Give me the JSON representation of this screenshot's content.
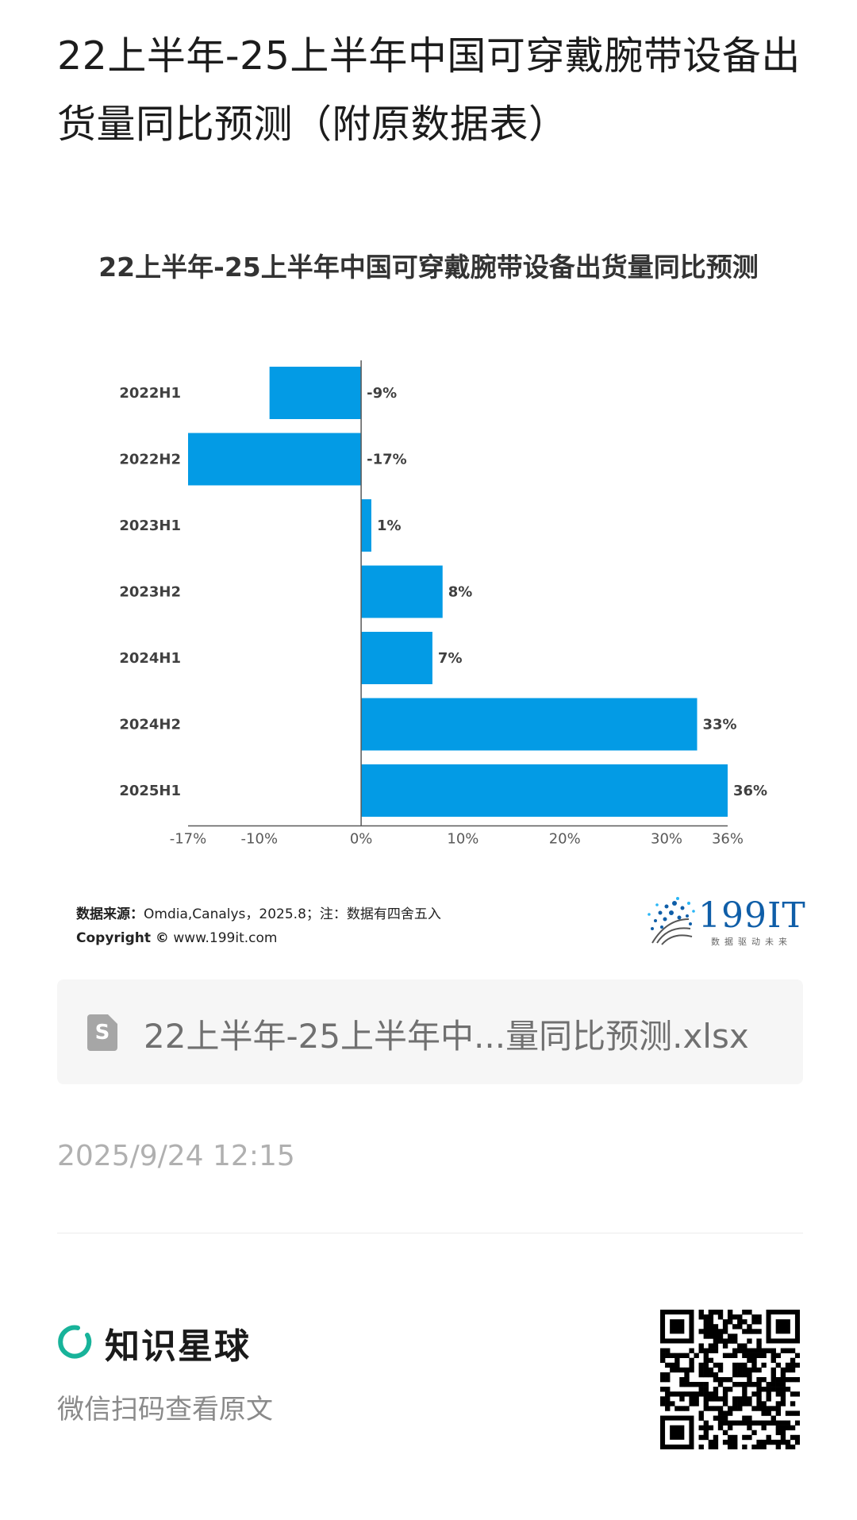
{
  "page": {
    "title": "22上半年-25上半年中国可穿戴腕带设备出货量同比预测（附原数据表）"
  },
  "chart_data": {
    "type": "bar",
    "orientation": "horizontal",
    "title": "22上半年-25上半年中国可穿戴腕带设备出货量同比预测",
    "categories": [
      "2022H1",
      "2022H2",
      "2023H1",
      "2023H2",
      "2024H1",
      "2024H2",
      "2025H1"
    ],
    "values": [
      -9,
      -17,
      1,
      8,
      7,
      33,
      36
    ],
    "value_labels": [
      "-9%",
      "-17%",
      "1%",
      "8%",
      "7%",
      "33%",
      "36%"
    ],
    "x_ticks": [
      -17,
      -10,
      0,
      10,
      20,
      30,
      36
    ],
    "x_tick_labels": [
      "-17%",
      "-10%",
      "0%",
      "10%",
      "20%",
      "30%",
      "36%"
    ],
    "xlim": [
      -17,
      36
    ],
    "xlabel": "",
    "ylabel": "",
    "grid": false,
    "colors": {
      "bar": "#039be5",
      "axis": "#595959"
    }
  },
  "source": {
    "label": "数据来源：",
    "text": "Omdia,Canalys，2025.8；注：数据有四舍五入",
    "copyright_label": "Copyright ©",
    "copyright_text": "www.199it.com"
  },
  "logo": {
    "name": "199IT",
    "tagline": "数据驱动未来"
  },
  "attachment": {
    "icon": "spreadsheet-file-icon",
    "icon_letter": "S",
    "filename": "22上半年-25上半年中...量同比预测.xlsx"
  },
  "timestamp": "2025/9/24 12:15",
  "footer": {
    "brand_name": "知识星球",
    "hint": "微信扫码查看原文",
    "brand_color": "#18b39a"
  }
}
